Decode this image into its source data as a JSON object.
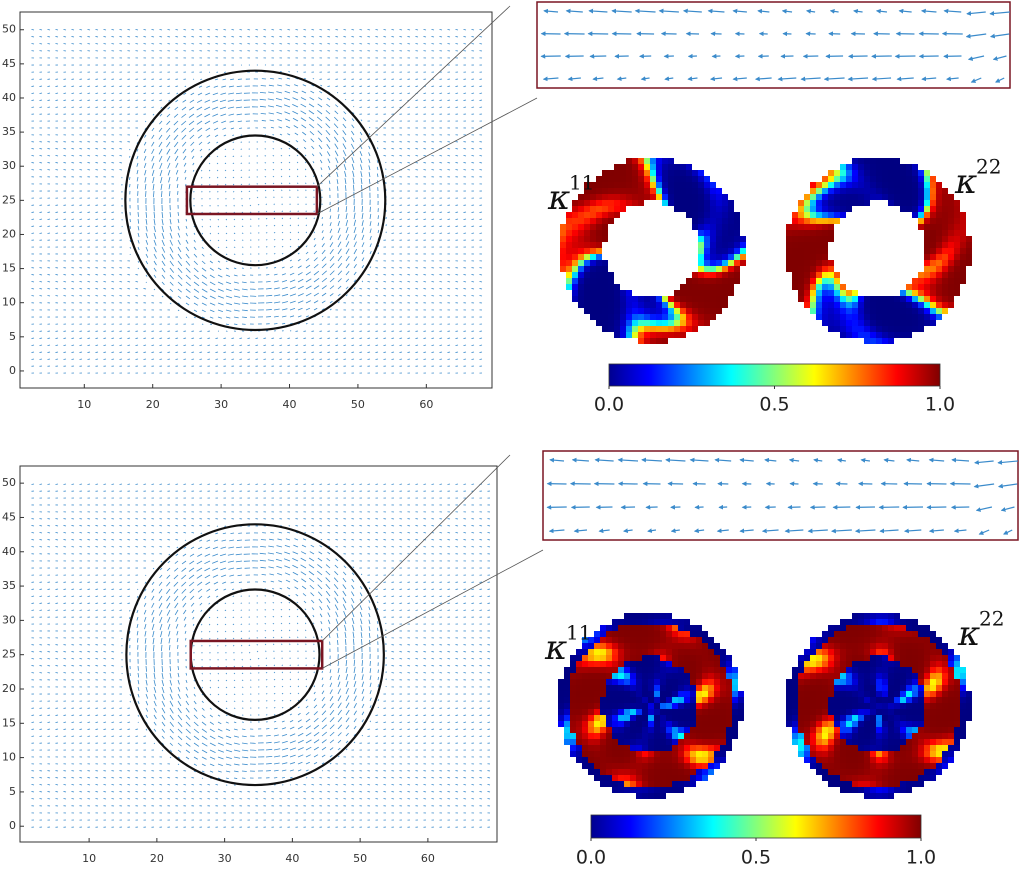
{
  "chart_data": [
    {
      "type": "quiver",
      "xlim": [
        0.6,
        69.6
      ],
      "ylim": [
        -2.5,
        52.6
      ],
      "xticks": [
        10,
        20,
        30,
        40,
        50,
        60
      ],
      "yticks": [
        0,
        5,
        10,
        15,
        20,
        25,
        30,
        35,
        40,
        45,
        50
      ],
      "circles": [
        {
          "cx": 35,
          "cy": 25,
          "r": 19
        },
        {
          "cx": 35,
          "cy": 25,
          "r": 9.5
        }
      ],
      "zoom_box": {
        "x": [
          25,
          44
        ],
        "y": [
          23,
          27
        ]
      }
    },
    {
      "type": "kappa-maps",
      "kappa_labels": [
        {
          "base": "κ",
          "sup": "11"
        },
        {
          "base": "κ",
          "sup": "22"
        }
      ],
      "clim": [
        0,
        1
      ],
      "colorbar_ticks": [
        {
          "value": 0,
          "label": "0.0"
        },
        0.5,
        {
          "value": 1,
          "label": "1.0"
        }
      ]
    },
    {
      "type": "quiver",
      "xlim": [
        -0.2,
        70.2
      ],
      "ylim": [
        -2.3,
        52.5
      ],
      "xticks": [
        10,
        20,
        30,
        40,
        50,
        60
      ],
      "yticks": [
        0,
        5,
        10,
        15,
        20,
        25,
        30,
        35,
        40,
        45,
        50
      ],
      "circles": [
        {
          "cx": 34.5,
          "cy": 25,
          "r": 19
        },
        {
          "cx": 34.5,
          "cy": 25,
          "r": 9.5
        }
      ],
      "zoom_box": {
        "x": [
          25,
          44.4
        ],
        "y": [
          23,
          27
        ]
      }
    },
    {
      "type": "kappa-maps",
      "kappa_labels": [
        {
          "base": "κ",
          "sup": "11"
        },
        {
          "base": "κ",
          "sup": "22"
        }
      ],
      "clim": [
        0,
        1
      ],
      "colorbar_ticks": [
        {
          "value": 0,
          "label": "0.0"
        },
        0.5,
        {
          "value": 1,
          "label": "1.0"
        }
      ]
    }
  ]
}
